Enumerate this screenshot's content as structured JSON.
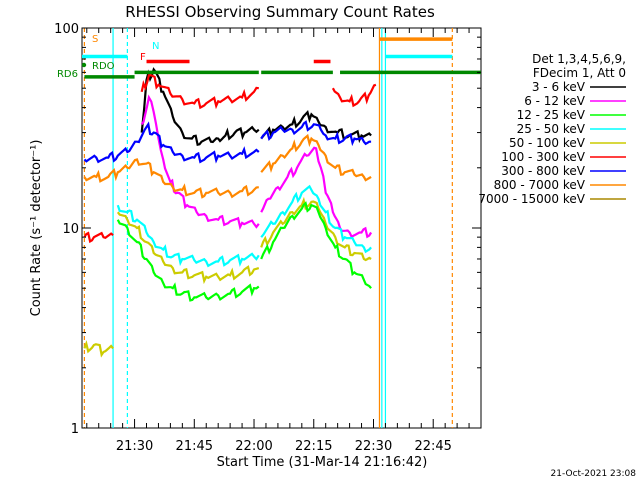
{
  "chart_data": {
    "type": "line",
    "title": "RHESSI Observing Summary Count Rates",
    "ylabel": "Count Rate (s⁻¹ detector⁻¹)",
    "xlabel": "Start Time (31-Mar-14 21:16:42)",
    "ylog": true,
    "ylim": [
      1,
      100
    ],
    "xlim_minutes": [
      21.28,
      22.95
    ],
    "xtick_labels": [
      "21:30",
      "21:45",
      "22:00",
      "22:15",
      "22:30",
      "22:45"
    ],
    "xtick_minutes": [
      21.5,
      21.75,
      22.0,
      22.25,
      22.5,
      22.75
    ],
    "ytick_labels": [
      "1",
      "10",
      "100"
    ],
    "ytick_values": [
      1,
      10,
      100
    ],
    "footer_date": "21-Oct-2021 23:08",
    "legend": {
      "header1": "Det 1,3,4,5,6,9,",
      "header2": "FDecim 1, Att 0",
      "entries": [
        {
          "label": "3 - 6 keV",
          "color": "#000000"
        },
        {
          "label": "6 - 12 keV",
          "color": "#ff00ff"
        },
        {
          "label": "12 - 25 keV",
          "color": "#00ff00"
        },
        {
          "label": "25 - 50 keV",
          "color": "#00ffff"
        },
        {
          "label": "50 - 100 keV",
          "color": "#cccc00"
        },
        {
          "label": "100 - 300 keV",
          "color": "#ff0000"
        },
        {
          "label": "300 - 800 keV",
          "color": "#0000ff"
        },
        {
          "label": "800 - 7000 keV",
          "color": "#ff8800"
        },
        {
          "label": "7000 - 15000 keV",
          "color": "#aa8800"
        }
      ]
    },
    "flags": [
      {
        "label": "S",
        "color": "#ff8800"
      },
      {
        "label": "N",
        "color": "#00ffff"
      },
      {
        "label": "F",
        "color": "#ff0000"
      },
      {
        "label": "RDO",
        "color": "#008800"
      },
      {
        "label": "RD6",
        "color": "#008800"
      }
    ],
    "series": [
      {
        "name": "3 - 6 keV",
        "color": "#000000",
        "points": [
          [
            21.53,
            30
          ],
          [
            21.55,
            55
          ],
          [
            21.58,
            62
          ],
          [
            21.62,
            48
          ],
          [
            21.66,
            36
          ],
          [
            21.7,
            30
          ],
          [
            21.74,
            28
          ],
          [
            21.78,
            27
          ],
          [
            21.82,
            27
          ],
          [
            21.85,
            28
          ],
          [
            21.88,
            29
          ],
          [
            21.92,
            30
          ],
          [
            21.96,
            30
          ],
          [
            22.0,
            31
          ],
          [
            22.02,
            31
          ]
        ]
      },
      {
        "name": "3 - 6 keV b",
        "color": "#000000",
        "points": [
          [
            22.03,
            28
          ],
          [
            22.08,
            31
          ],
          [
            22.12,
            32
          ],
          [
            22.16,
            33
          ],
          [
            22.2,
            35
          ],
          [
            22.24,
            37
          ],
          [
            22.27,
            34
          ],
          [
            22.3,
            32
          ],
          [
            22.35,
            30
          ],
          [
            22.4,
            29
          ],
          [
            22.45,
            29
          ],
          [
            22.49,
            29
          ]
        ]
      },
      {
        "name": "6 - 12 keV",
        "color": "#ff00ff",
        "points": [
          [
            21.53,
            33
          ],
          [
            21.56,
            45
          ],
          [
            21.58,
            38
          ],
          [
            21.6,
            28
          ],
          [
            21.62,
            22
          ],
          [
            21.65,
            17
          ],
          [
            21.68,
            15
          ],
          [
            21.72,
            13
          ],
          [
            21.76,
            12
          ],
          [
            21.8,
            11.5
          ],
          [
            21.85,
            11
          ],
          [
            21.9,
            10.8
          ],
          [
            21.95,
            10.6
          ],
          [
            22.0,
            10.5
          ],
          [
            22.02,
            10.5
          ]
        ]
      },
      {
        "name": "6 - 12 keV b",
        "color": "#ff00ff",
        "points": [
          [
            22.03,
            12
          ],
          [
            22.06,
            14
          ],
          [
            22.1,
            16
          ],
          [
            22.14,
            18
          ],
          [
            22.18,
            20
          ],
          [
            22.22,
            23
          ],
          [
            22.26,
            25
          ],
          [
            22.28,
            20
          ],
          [
            22.3,
            15
          ],
          [
            22.33,
            12
          ],
          [
            22.36,
            10
          ],
          [
            22.4,
            9.5
          ],
          [
            22.45,
            9.5
          ],
          [
            22.49,
            9.5
          ]
        ]
      },
      {
        "name": "100 - 300 keV",
        "color": "#ff0000",
        "points": [
          [
            21.53,
            48
          ],
          [
            21.56,
            58
          ],
          [
            21.6,
            52
          ],
          [
            21.65,
            47
          ],
          [
            21.7,
            44
          ],
          [
            21.75,
            42
          ],
          [
            21.8,
            42
          ],
          [
            21.85,
            43
          ],
          [
            21.9,
            44
          ],
          [
            21.95,
            45
          ],
          [
            22.0,
            48
          ],
          [
            22.02,
            50
          ]
        ]
      },
      {
        "name": "100 - 300 keV b",
        "color": "#ff0000",
        "points": [
          [
            22.33,
            50
          ],
          [
            22.36,
            45
          ],
          [
            22.4,
            43
          ],
          [
            22.44,
            43
          ],
          [
            22.48,
            46
          ],
          [
            22.51,
            52
          ]
        ]
      },
      {
        "name": "100 - 300 keV low",
        "color": "#ff0000",
        "points": [
          [
            21.29,
            9
          ],
          [
            21.33,
            9
          ],
          [
            21.37,
            9
          ],
          [
            21.41,
            9.2
          ]
        ]
      },
      {
        "name": "300 - 800 keV",
        "color": "#0000ff",
        "points": [
          [
            21.29,
            22
          ],
          [
            21.34,
            22.5
          ],
          [
            21.39,
            22.5
          ],
          [
            21.43,
            23
          ],
          [
            21.47,
            24
          ],
          [
            21.51,
            27
          ],
          [
            21.55,
            32
          ],
          [
            21.58,
            30
          ],
          [
            21.62,
            26
          ],
          [
            21.66,
            24
          ],
          [
            21.7,
            23
          ],
          [
            21.75,
            22.5
          ],
          [
            21.8,
            22.5
          ],
          [
            21.85,
            23
          ],
          [
            21.9,
            23
          ],
          [
            21.95,
            23.5
          ],
          [
            22.0,
            24
          ],
          [
            22.02,
            24
          ]
        ]
      },
      {
        "name": "300 - 800 keV b",
        "color": "#0000ff",
        "points": [
          [
            22.03,
            28
          ],
          [
            22.08,
            30
          ],
          [
            22.12,
            31
          ],
          [
            22.16,
            31
          ],
          [
            22.2,
            32
          ],
          [
            22.25,
            33
          ],
          [
            22.28,
            31
          ],
          [
            22.3,
            29
          ],
          [
            22.34,
            28
          ],
          [
            22.38,
            28
          ],
          [
            22.42,
            28
          ],
          [
            22.46,
            27
          ],
          [
            22.49,
            27
          ]
        ]
      },
      {
        "name": "800 - 7000 keV",
        "color": "#ff8800",
        "points": [
          [
            21.29,
            18
          ],
          [
            21.34,
            18
          ],
          [
            21.39,
            18
          ],
          [
            21.43,
            19
          ],
          [
            21.47,
            20
          ],
          [
            21.51,
            22
          ],
          [
            21.55,
            21
          ],
          [
            21.58,
            19
          ],
          [
            21.62,
            17
          ],
          [
            21.66,
            16
          ],
          [
            21.7,
            15.5
          ],
          [
            21.75,
            15
          ],
          [
            21.8,
            15
          ],
          [
            21.85,
            15
          ],
          [
            21.9,
            15
          ],
          [
            21.95,
            15.3
          ],
          [
            22.0,
            15.5
          ],
          [
            22.02,
            16
          ]
        ]
      },
      {
        "name": "800 - 7000 keV b",
        "color": "#ff8800",
        "points": [
          [
            22.03,
            19
          ],
          [
            22.08,
            21
          ],
          [
            22.12,
            23
          ],
          [
            22.16,
            25
          ],
          [
            22.2,
            27
          ],
          [
            22.24,
            28
          ],
          [
            22.27,
            26
          ],
          [
            22.3,
            23
          ],
          [
            22.34,
            20
          ],
          [
            22.38,
            19
          ],
          [
            22.42,
            18.5
          ],
          [
            22.46,
            18
          ],
          [
            22.49,
            18
          ]
        ]
      },
      {
        "name": "25 - 50 keV",
        "color": "#00ffff",
        "points": [
          [
            21.43,
            13
          ],
          [
            21.47,
            12
          ],
          [
            21.51,
            11
          ],
          [
            21.55,
            9.5
          ],
          [
            21.58,
            8.5
          ],
          [
            21.62,
            7.8
          ],
          [
            21.66,
            7.2
          ],
          [
            21.7,
            7
          ],
          [
            21.75,
            6.9
          ],
          [
            21.8,
            6.8
          ],
          [
            21.85,
            6.8
          ],
          [
            21.9,
            6.9
          ],
          [
            21.95,
            7
          ],
          [
            22.0,
            7.2
          ],
          [
            22.02,
            7.3
          ]
        ]
      },
      {
        "name": "25 - 50 keV b",
        "color": "#00ffff",
        "points": [
          [
            22.03,
            9
          ],
          [
            22.08,
            10.5
          ],
          [
            22.12,
            12
          ],
          [
            22.16,
            13.5
          ],
          [
            22.2,
            15
          ],
          [
            22.24,
            15.5
          ],
          [
            22.27,
            14
          ],
          [
            22.3,
            12
          ],
          [
            22.34,
            10
          ],
          [
            22.38,
            9
          ],
          [
            22.42,
            8.5
          ],
          [
            22.46,
            8
          ],
          [
            22.49,
            8
          ]
        ]
      },
      {
        "name": "50 - 100 keV",
        "color": "#cccc00",
        "points": [
          [
            21.29,
            2.5
          ],
          [
            21.33,
            2.6
          ],
          [
            21.37,
            2.4
          ],
          [
            21.41,
            2.5
          ]
        ]
      },
      {
        "name": "50 - 100 keV b",
        "color": "#cccc00",
        "points": [
          [
            21.43,
            12
          ],
          [
            21.47,
            11
          ],
          [
            21.51,
            10
          ],
          [
            21.55,
            8.5
          ],
          [
            21.58,
            7.5
          ],
          [
            21.62,
            6.8
          ],
          [
            21.66,
            6.3
          ],
          [
            21.7,
            6
          ],
          [
            21.75,
            5.8
          ],
          [
            21.8,
            5.7
          ],
          [
            21.85,
            5.7
          ],
          [
            21.9,
            5.8
          ],
          [
            21.95,
            6
          ],
          [
            22.0,
            6.2
          ],
          [
            22.02,
            6.3
          ]
        ]
      },
      {
        "name": "50 - 100 keV c",
        "color": "#cccc00",
        "points": [
          [
            22.03,
            8
          ],
          [
            22.08,
            9.5
          ],
          [
            22.12,
            10.5
          ],
          [
            22.16,
            12
          ],
          [
            22.2,
            13
          ],
          [
            22.24,
            13.5
          ],
          [
            22.27,
            12.5
          ],
          [
            22.3,
            10.5
          ],
          [
            22.34,
            9
          ],
          [
            22.38,
            8
          ],
          [
            22.42,
            7.5
          ],
          [
            22.46,
            7
          ],
          [
            22.49,
            7
          ]
        ]
      },
      {
        "name": "12 - 25 keV",
        "color": "#00ff00",
        "points": [
          [
            21.43,
            11
          ],
          [
            21.47,
            10
          ],
          [
            21.51,
            8.5
          ],
          [
            21.55,
            7
          ],
          [
            21.58,
            6
          ],
          [
            21.62,
            5.3
          ],
          [
            21.66,
            5
          ],
          [
            21.7,
            4.7
          ],
          [
            21.75,
            4.5
          ],
          [
            21.8,
            4.5
          ],
          [
            21.85,
            4.6
          ],
          [
            21.9,
            4.7
          ],
          [
            21.95,
            4.8
          ],
          [
            22.0,
            5
          ],
          [
            22.02,
            5.1
          ]
        ]
      },
      {
        "name": "12 - 25 keV b",
        "color": "#00ff00",
        "points": [
          [
            22.03,
            7
          ],
          [
            22.08,
            8.5
          ],
          [
            22.12,
            10
          ],
          [
            22.16,
            11.5
          ],
          [
            22.2,
            12.5
          ],
          [
            22.24,
            13
          ],
          [
            22.27,
            12
          ],
          [
            22.3,
            10
          ],
          [
            22.34,
            8
          ],
          [
            22.38,
            7
          ],
          [
            22.42,
            6
          ],
          [
            22.46,
            5.5
          ],
          [
            22.49,
            5
          ]
        ]
      }
    ],
    "flag_bars": [
      {
        "name": "S bar",
        "color": "#ff8800",
        "x0": 22.525,
        "x1": 22.83,
        "y": 88
      },
      {
        "name": "N bar left",
        "color": "#00ffff",
        "x0": 21.28,
        "x1": 21.47,
        "y": 72
      },
      {
        "name": "N bar right",
        "color": "#00ffff",
        "x0": 22.55,
        "x1": 22.83,
        "y": 72
      },
      {
        "name": "F bar 1",
        "color": "#ff0000",
        "x0": 21.55,
        "x1": 21.73,
        "y": 68
      },
      {
        "name": "F bar 2",
        "color": "#ff0000",
        "x0": 22.25,
        "x1": 22.32,
        "y": 68
      },
      {
        "name": "RDO bar 1",
        "color": "#008800",
        "x0": 21.5,
        "x1": 22.02,
        "y": 60
      },
      {
        "name": "RDO bar 2",
        "color": "#008800",
        "x0": 22.03,
        "x1": 22.33,
        "y": 60
      },
      {
        "name": "RDO bar 3",
        "color": "#008800",
        "x0": 22.36,
        "x1": 22.95,
        "y": 60
      },
      {
        "name": "RD6 bar",
        "color": "#008800",
        "x0": 21.29,
        "x1": 21.5,
        "y": 57
      }
    ],
    "vlines": [
      {
        "name": "S start",
        "x": 21.29,
        "color": "#ff8800",
        "dashed": true
      },
      {
        "name": "N end",
        "x": 21.41,
        "color": "#00ffff",
        "dashed": false
      },
      {
        "name": "N start",
        "x": 21.47,
        "color": "#00ffff",
        "dashed": true
      },
      {
        "name": "S end",
        "x": 22.525,
        "color": "#ff8800",
        "dashed": false
      },
      {
        "name": "N end 2",
        "x": 22.535,
        "color": "#00ffff",
        "dashed": false
      },
      {
        "name": "N start 2",
        "x": 22.55,
        "color": "#00ffff",
        "dashed": false
      },
      {
        "name": "S start 2",
        "x": 22.83,
        "color": "#ff8800",
        "dashed": true
      }
    ]
  }
}
